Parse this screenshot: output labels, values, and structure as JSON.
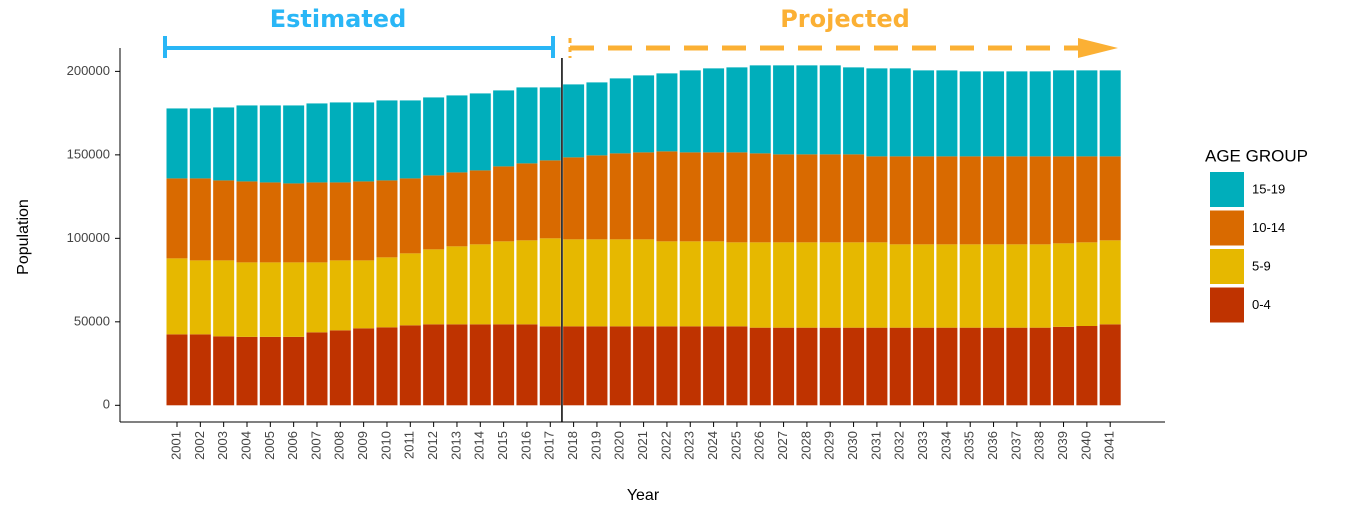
{
  "chart_data": {
    "type": "stacked_bar",
    "annotations": [
      "Estimated",
      "Projected"
    ],
    "x_label": "Year",
    "y_label": "Population",
    "legend_title": "AGE GROUP",
    "legend_position": "right",
    "grid": false,
    "categories": [
      "2001",
      "2002",
      "2003",
      "2004",
      "2005",
      "2006",
      "2007",
      "2008",
      "2009",
      "2010",
      "2011",
      "2012",
      "2013",
      "2014",
      "2015",
      "2016",
      "2017",
      "2018",
      "2019",
      "2020",
      "2021",
      "2022",
      "2023",
      "2024",
      "2025",
      "2026",
      "2027",
      "2028",
      "2029",
      "2030",
      "2031",
      "2032",
      "2033",
      "2034",
      "2035",
      "2036",
      "2037",
      "2038",
      "2039",
      "2040",
      "2041"
    ],
    "series": [
      {
        "name": "0-4",
        "color": "#bf3300",
        "values": [
          42500,
          42500,
          41300,
          41000,
          41000,
          41000,
          43700,
          44900,
          46100,
          46700,
          47900,
          48500,
          48500,
          48500,
          48500,
          48500,
          47300,
          47300,
          47300,
          47300,
          47300,
          47300,
          47300,
          47300,
          47300,
          46500,
          46500,
          46500,
          46500,
          46500,
          46500,
          46500,
          46500,
          46500,
          46500,
          46500,
          46500,
          46500,
          47000,
          47500,
          48500
        ]
      },
      {
        "name": "5-9",
        "color": "#e6b800",
        "values": [
          45500,
          44300,
          45500,
          44600,
          44600,
          44600,
          41900,
          41900,
          40700,
          41900,
          43100,
          44900,
          46700,
          47900,
          49700,
          50300,
          52700,
          52100,
          52100,
          52100,
          52100,
          50900,
          50900,
          50900,
          50300,
          51100,
          51100,
          51100,
          51100,
          51100,
          51100,
          49900,
          49900,
          49900,
          49900,
          49900,
          49900,
          49900,
          50000,
          50100,
          50300
        ]
      },
      {
        "name": "10-14",
        "color": "#d96a00",
        "values": [
          47900,
          49100,
          47900,
          48500,
          47900,
          47300,
          47900,
          46700,
          47300,
          46100,
          44900,
          44300,
          44300,
          44300,
          44900,
          46100,
          46700,
          49100,
          50300,
          51500,
          52100,
          53900,
          53300,
          53300,
          53900,
          53300,
          52700,
          52700,
          52700,
          52700,
          51500,
          52700,
          52700,
          52700,
          52700,
          52700,
          52700,
          52700,
          52100,
          51500,
          50300
        ]
      },
      {
        "name": "15-19",
        "color": "#00aebb",
        "values": [
          41900,
          41900,
          43700,
          45500,
          46100,
          46700,
          47300,
          47900,
          47300,
          47900,
          46700,
          46700,
          46100,
          46100,
          45500,
          45500,
          43700,
          43700,
          43700,
          44900,
          46100,
          46700,
          49100,
          50300,
          50900,
          52700,
          53300,
          53300,
          53300,
          52100,
          52700,
          52700,
          51500,
          51500,
          50900,
          50900,
          50900,
          50900,
          51500,
          51500,
          51500
        ]
      }
    ],
    "ylim": [
      -10000,
      214000
    ],
    "yticks": [
      0,
      50000,
      100000,
      150000,
      200000
    ]
  }
}
